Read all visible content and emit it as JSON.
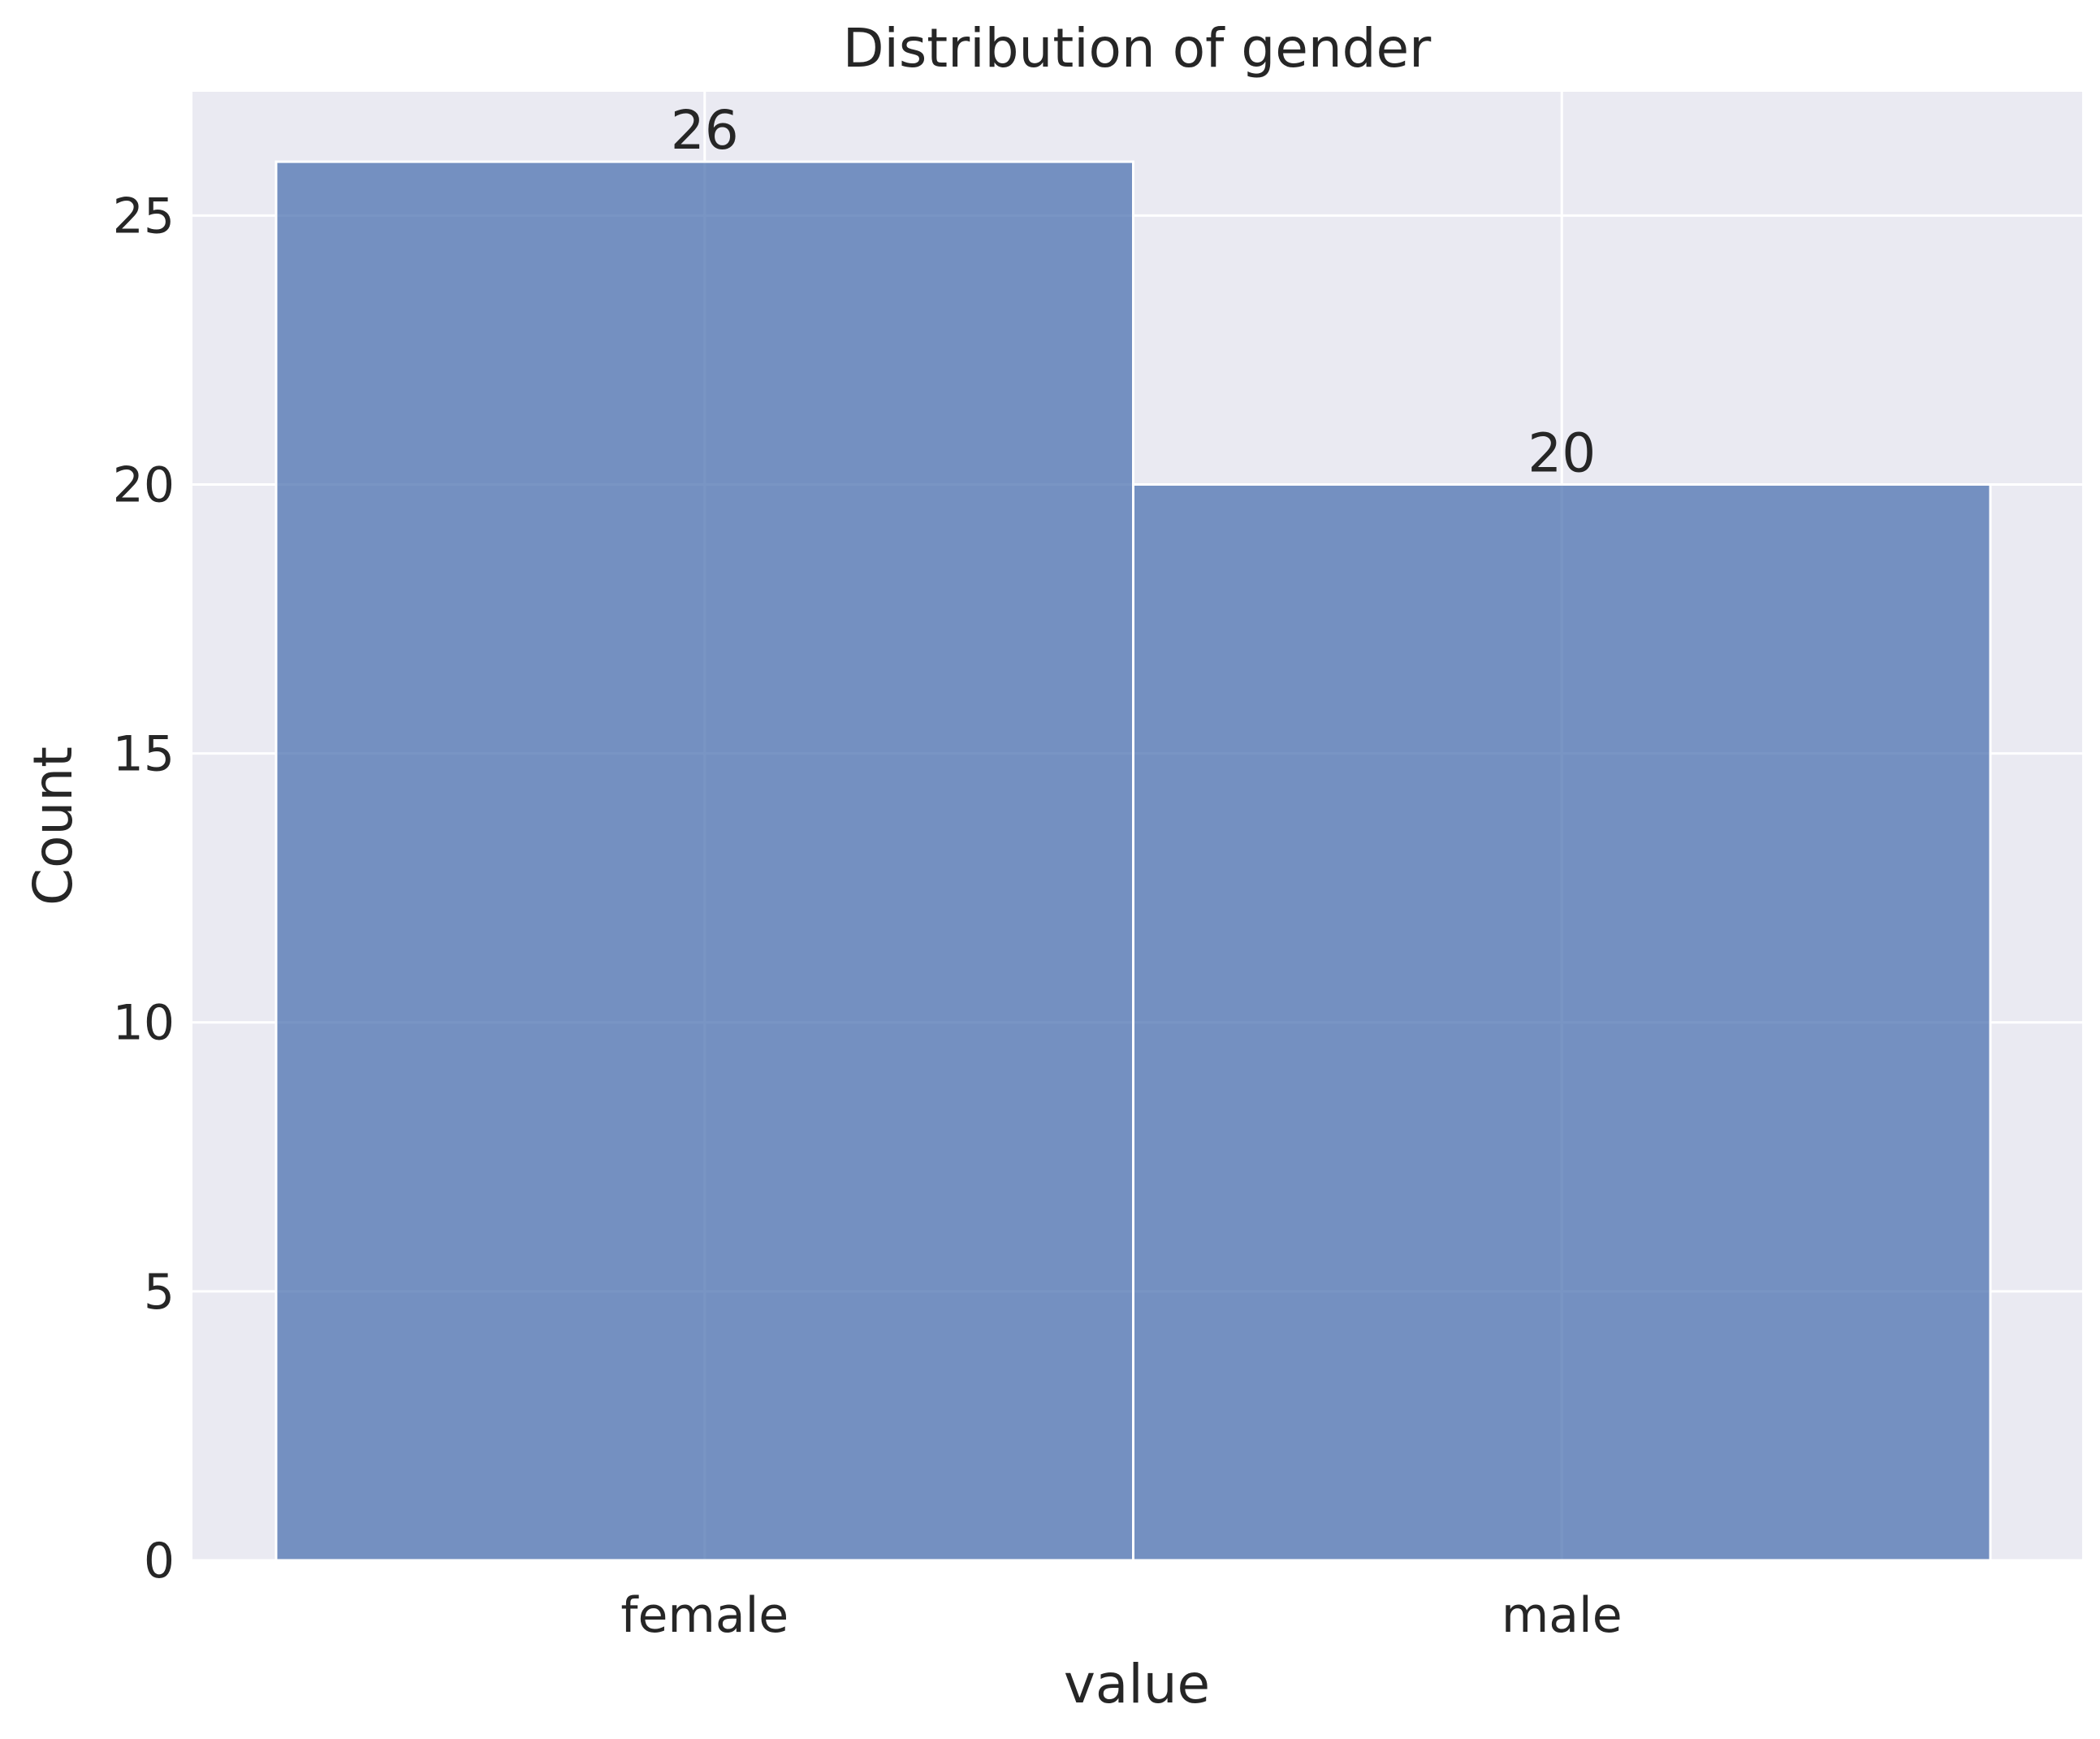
{
  "chart_data": {
    "type": "bar",
    "title": "Distribution of gender",
    "xlabel": "value",
    "ylabel": "Count",
    "categories": [
      "female",
      "male"
    ],
    "values": [
      26,
      20
    ],
    "data_labels": [
      "26",
      "20"
    ],
    "ylim": [
      0,
      27.3
    ],
    "yticks": [
      0,
      5,
      10,
      15,
      20,
      25
    ],
    "grid": true,
    "legend": "none",
    "colors": {
      "plot_background": "#eaeaf2",
      "bar_fill": "#4c72b0",
      "bar_fill_opacity": 0.75,
      "bar_edge": "#ffffff",
      "gridline": "#ffffff",
      "text": "#262626"
    }
  }
}
